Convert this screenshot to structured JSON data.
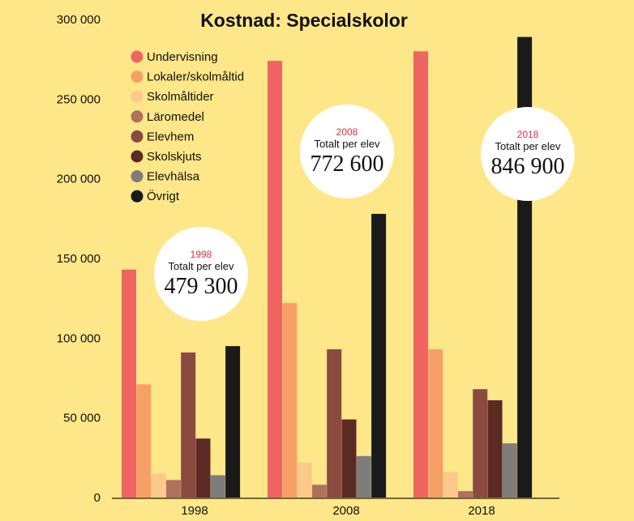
{
  "chart_data": {
    "type": "bar",
    "title": "Kostnad: Specialskolor",
    "categories": [
      "1998",
      "2008",
      "2018"
    ],
    "ylim": [
      0,
      300000
    ],
    "yticks": [
      {
        "value": 0,
        "label": "0"
      },
      {
        "value": 50000,
        "label": "50 000"
      },
      {
        "value": 100000,
        "label": "100 000"
      },
      {
        "value": 150000,
        "label": "150 000"
      },
      {
        "value": 200000,
        "label": "200 000"
      },
      {
        "value": 250000,
        "label": "250 000"
      },
      {
        "value": 300000,
        "label": "300 000"
      }
    ],
    "grid": false,
    "legend_position": "top-left",
    "series": [
      {
        "name": "Undervisning",
        "color": "#ef6461",
        "values": [
          143000,
          274000,
          280000
        ]
      },
      {
        "name": "Lokaler/skolmåltid",
        "color": "#f7a066",
        "values": [
          71000,
          122000,
          93000
        ]
      },
      {
        "name": "Skolmåltider",
        "color": "#fcc98a",
        "values": [
          15000,
          22000,
          16000
        ]
      },
      {
        "name": "Läromedel",
        "color": "#b1705e",
        "values": [
          11000,
          8000,
          4000
        ]
      },
      {
        "name": "Elevhem",
        "color": "#8a4a40",
        "values": [
          91000,
          93000,
          68000
        ]
      },
      {
        "name": "Skolskjuts",
        "color": "#5b2a23",
        "values": [
          37000,
          49000,
          61000
        ]
      },
      {
        "name": "Elevhälsa",
        "color": "#7f7d79",
        "values": [
          14000,
          26000,
          34000
        ]
      },
      {
        "name": "Övrigt",
        "color": "#1a1a1a",
        "values": [
          95000,
          178000,
          289000
        ]
      }
    ],
    "annotations": [
      {
        "year": "1998",
        "label": "Totalt per elev",
        "value": "479 300"
      },
      {
        "year": "2008",
        "label": "Totalt per elev",
        "value": "772 600"
      },
      {
        "year": "2018",
        "label": "Totalt per elev",
        "value": "846 900"
      }
    ],
    "accent_color": "#d9303a",
    "background_color": "#fde789"
  }
}
